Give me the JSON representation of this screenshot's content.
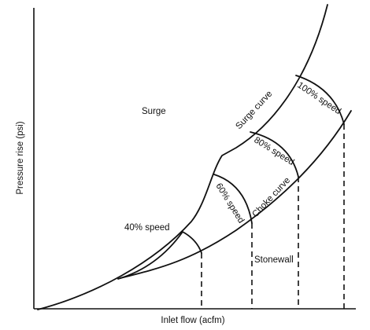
{
  "axes": {
    "x_label": "Inlet flow (acfm)",
    "y_label": "Pressure rise (psi)"
  },
  "regions": {
    "surge": "Surge",
    "stonewall": "Stonewall"
  },
  "curves": {
    "surge_curve": "Surge curve",
    "choke_curve": "Choke curve"
  },
  "speed_lines": [
    {
      "label": "40% speed"
    },
    {
      "label": "60% speed"
    },
    {
      "label": "80% speed"
    },
    {
      "label": "100% speed"
    }
  ]
}
